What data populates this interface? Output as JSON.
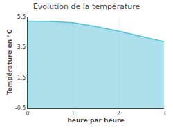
{
  "chart_data": {
    "type": "area",
    "title": "Evolution de la température",
    "xlabel": "heure par heure",
    "ylabel": "Température en °C",
    "x": [
      0,
      0.5,
      1.0,
      1.5,
      2.0,
      2.5,
      3.0
    ],
    "values": [
      5.2,
      5.18,
      5.1,
      4.85,
      4.55,
      4.2,
      3.85
    ],
    "color": "#55c0d8",
    "xlim": [
      0,
      3
    ],
    "ylim": [
      -0.5,
      5.5
    ],
    "xticks": [
      0,
      1,
      2,
      3
    ],
    "yticks": [
      -0.5,
      1.5,
      3.5,
      5.5
    ],
    "grid": "x"
  }
}
